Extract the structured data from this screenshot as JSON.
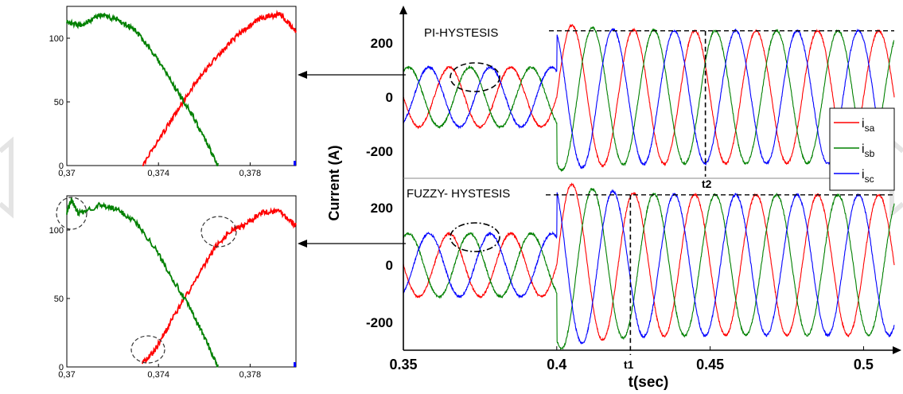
{
  "figure": {
    "main_ylabel": "Current (A)",
    "main_xlabel": "t(sec)"
  },
  "colors": {
    "isa": "#ff0000",
    "isb": "#008000",
    "isc": "#0000ff",
    "annotation": "#000000",
    "watermark": "#e4e4e4"
  },
  "chart_data": [
    {
      "type": "line",
      "name": "main-upper",
      "title": "PI-HYSTESIS",
      "xlim": [
        0.35,
        0.51
      ],
      "ylim": [
        -320,
        300
      ],
      "yticks": [
        -200,
        0,
        200
      ],
      "yticklabels": [
        "-200",
        "0",
        "200"
      ],
      "frequency_hz": 50,
      "series": [
        {
          "name": "i_sa",
          "phase_deg": 0,
          "amplitude_before": 110,
          "amplitude_after": 245,
          "color": "#ff0000"
        },
        {
          "name": "i_sb",
          "phase_deg": -120,
          "amplitude_before": 110,
          "amplitude_after": 245,
          "color": "#008000"
        },
        {
          "name": "i_sc",
          "phase_deg": 120,
          "amplitude_before": 110,
          "amplitude_after": 245,
          "color": "#0000ff"
        }
      ],
      "step_time": 0.4,
      "overshoot_peak": 275,
      "steady_state_line": 245,
      "marker_label": "t2",
      "marker_time": 0.45
    },
    {
      "type": "line",
      "name": "main-lower",
      "title": "FUZZY- HYSTESIS",
      "xlim": [
        0.35,
        0.51
      ],
      "ylim": [
        -320,
        300
      ],
      "yticks": [
        -200,
        0,
        200
      ],
      "yticklabels": [
        "-200",
        "0",
        "200"
      ],
      "xticks": [
        0.35,
        0.4,
        0.45,
        0.5
      ],
      "xticklabels": [
        "0.35",
        "0.4",
        "0.45",
        "0.5"
      ],
      "frequency_hz": 50,
      "series": [
        {
          "name": "i_sa",
          "phase_deg": 0,
          "amplitude_before": 110,
          "amplitude_after": 245,
          "color": "#ff0000"
        },
        {
          "name": "i_sb",
          "phase_deg": -120,
          "amplitude_before": 110,
          "amplitude_after": 245,
          "color": "#008000"
        },
        {
          "name": "i_sc",
          "phase_deg": 120,
          "amplitude_before": 110,
          "amplitude_after": 245,
          "color": "#0000ff"
        }
      ],
      "step_time": 0.4,
      "overshoot_peak": 300,
      "steady_state_line": 245,
      "marker_label": "t1",
      "marker_time": 0.424
    },
    {
      "type": "line",
      "name": "zoom-upper",
      "xlim": [
        0.37,
        0.38
      ],
      "ylim": [
        0,
        125
      ],
      "yticks": [
        0,
        50,
        100
      ],
      "yticklabels": [
        "0",
        "50",
        "100"
      ],
      "xticks": [
        0.37,
        0.374,
        0.378
      ],
      "xticklabels": [
        "0,37",
        "0,374",
        "0,378"
      ],
      "series": [
        {
          "name": "i_sa",
          "color": "#ff0000",
          "x": [
            0.3733,
            0.3745,
            0.3755,
            0.3765,
            0.3775,
            0.3785,
            0.3793,
            0.38
          ],
          "y": [
            0,
            34,
            62,
            85,
            103,
            116,
            119,
            105
          ]
        },
        {
          "name": "i_sb",
          "color": "#008000",
          "x": [
            0.37,
            0.3706,
            0.3714,
            0.3722,
            0.373,
            0.3738,
            0.3746,
            0.3754,
            0.376,
            0.3766
          ],
          "y": [
            113,
            110,
            118,
            115,
            106,
            88,
            65,
            42,
            22,
            0
          ]
        }
      ]
    },
    {
      "type": "line",
      "name": "zoom-lower",
      "xlim": [
        0.37,
        0.38
      ],
      "ylim": [
        0,
        125
      ],
      "yticks": [
        0,
        50,
        100
      ],
      "yticklabels": [
        "0",
        "50",
        "100"
      ],
      "xticks": [
        0.37,
        0.374,
        0.378
      ],
      "xticklabels": [
        "0,37",
        "0,374",
        "0,378"
      ],
      "series": [
        {
          "name": "i_sa",
          "color": "#ff0000",
          "x": [
            0.3733,
            0.3738,
            0.3745,
            0.3755,
            0.3765,
            0.3772,
            0.3777,
            0.3785,
            0.3793,
            0.38
          ],
          "y": [
            3,
            11,
            32,
            60,
            88,
            100,
            103,
            113,
            114,
            103
          ]
        },
        {
          "name": "i_sb",
          "color": "#008000",
          "x": [
            0.37,
            0.3702,
            0.3705,
            0.3714,
            0.3722,
            0.373,
            0.3738,
            0.3746,
            0.3754,
            0.376,
            0.3766
          ],
          "y": [
            113,
            122,
            112,
            118,
            115,
            106,
            88,
            65,
            42,
            22,
            0
          ]
        }
      ]
    }
  ],
  "legend": {
    "entries": [
      {
        "base": "i",
        "sub": "sa",
        "color": "#ff0000"
      },
      {
        "base": "i",
        "sub": "sb",
        "color": "#008000"
      },
      {
        "base": "i",
        "sub": "sc",
        "color": "#0000ff"
      }
    ]
  }
}
